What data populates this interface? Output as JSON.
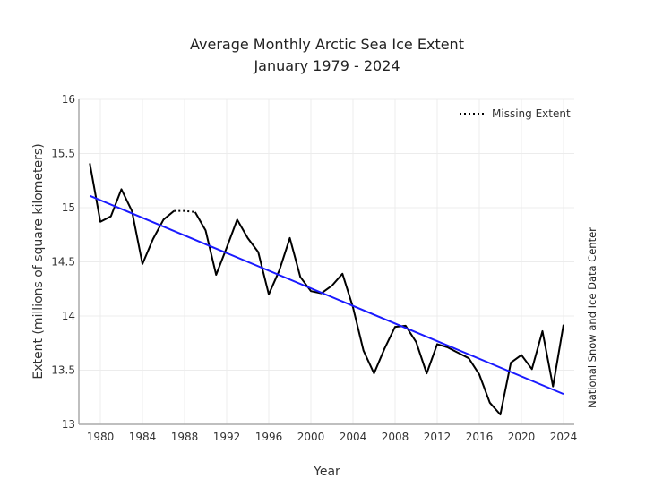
{
  "chart_data": {
    "type": "line",
    "title": "Average Monthly Arctic Sea Ice Extent",
    "subtitle": "January 1979 - 2024",
    "xlabel": "Year",
    "ylabel": "Extent (millions of square kilometers)",
    "credit": "National Snow and Ice Data Center",
    "xlim": [
      1978,
      2025
    ],
    "ylim": [
      13,
      16
    ],
    "x_ticks": [
      1980,
      1984,
      1988,
      1992,
      1996,
      2000,
      2004,
      2008,
      2012,
      2016,
      2020,
      2024
    ],
    "y_ticks": [
      13,
      13.5,
      14,
      14.5,
      15,
      15.5,
      16
    ],
    "y_tick_labels": [
      "13",
      "13.5",
      "14",
      "14.5",
      "15",
      "15.5",
      "16"
    ],
    "grid": true,
    "legend": {
      "position": "top-right",
      "entries": [
        {
          "label": "Missing Extent",
          "style": "dotted"
        }
      ]
    },
    "series": [
      {
        "name": "Extent",
        "color": "#000000",
        "x": [
          1979,
          1980,
          1981,
          1982,
          1983,
          1984,
          1985,
          1986,
          1987,
          1989,
          1990,
          1991,
          1992,
          1993,
          1994,
          1995,
          1996,
          1997,
          1998,
          1999,
          2000,
          2001,
          2002,
          2003,
          2004,
          2005,
          2006,
          2007,
          2008,
          2009,
          2010,
          2011,
          2012,
          2013,
          2014,
          2015,
          2016,
          2017,
          2018,
          2019,
          2020,
          2021,
          2022,
          2023,
          2024
        ],
        "values": [
          15.41,
          14.87,
          14.92,
          15.17,
          14.97,
          14.48,
          14.71,
          14.89,
          14.97,
          14.96,
          14.79,
          14.38,
          14.63,
          14.89,
          14.72,
          14.59,
          14.2,
          14.42,
          14.72,
          14.36,
          14.23,
          14.21,
          14.28,
          14.39,
          14.08,
          13.68,
          13.47,
          13.7,
          13.9,
          13.91,
          13.76,
          13.47,
          13.74,
          13.71,
          13.66,
          13.61,
          13.46,
          13.2,
          13.09,
          13.57,
          13.64,
          13.51,
          13.86,
          13.35,
          13.92
        ]
      },
      {
        "name": "Missing Extent",
        "color": "#000000",
        "style": "dotted",
        "x": [
          1987,
          1988,
          1989
        ],
        "values": [
          14.97,
          14.97,
          14.96
        ]
      },
      {
        "name": "Linear Trend",
        "color": "#1a1aff",
        "x": [
          1979,
          2024
        ],
        "values": [
          15.11,
          13.28
        ]
      }
    ]
  }
}
